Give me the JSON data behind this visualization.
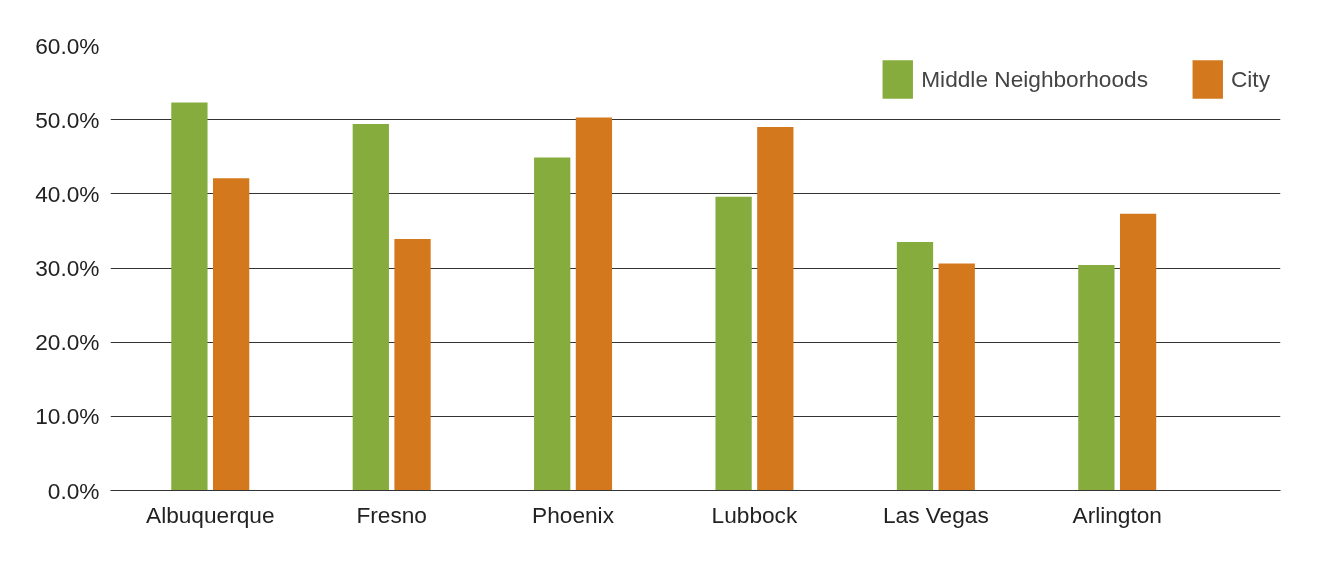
{
  "chart_data": {
    "type": "bar",
    "categories": [
      "Albuquerque",
      "Fresno",
      "Phoenix",
      "Lubbock",
      "Las Vegas",
      "Arlington"
    ],
    "series": [
      {
        "name": "Middle Neighborhoods",
        "color": "#86ac3e",
        "values": [
          52.3,
          49.4,
          44.9,
          39.6,
          33.5,
          30.4
        ]
      },
      {
        "name": "City",
        "color": "#d3781c",
        "values": [
          42.1,
          33.9,
          50.3,
          49.0,
          30.6,
          37.3
        ]
      }
    ],
    "ylim": [
      0,
      60
    ],
    "yticks": [
      {
        "value": 0,
        "label": "0.0%"
      },
      {
        "value": 10,
        "label": "10.0%"
      },
      {
        "value": 20,
        "label": "20.0%"
      },
      {
        "value": 30,
        "label": "30.0%"
      },
      {
        "value": 40,
        "label": "40.0%"
      },
      {
        "value": 50,
        "label": "50.0%"
      },
      {
        "value": 60,
        "label": "60.0%"
      }
    ],
    "grid": "y",
    "legend": "top right"
  }
}
